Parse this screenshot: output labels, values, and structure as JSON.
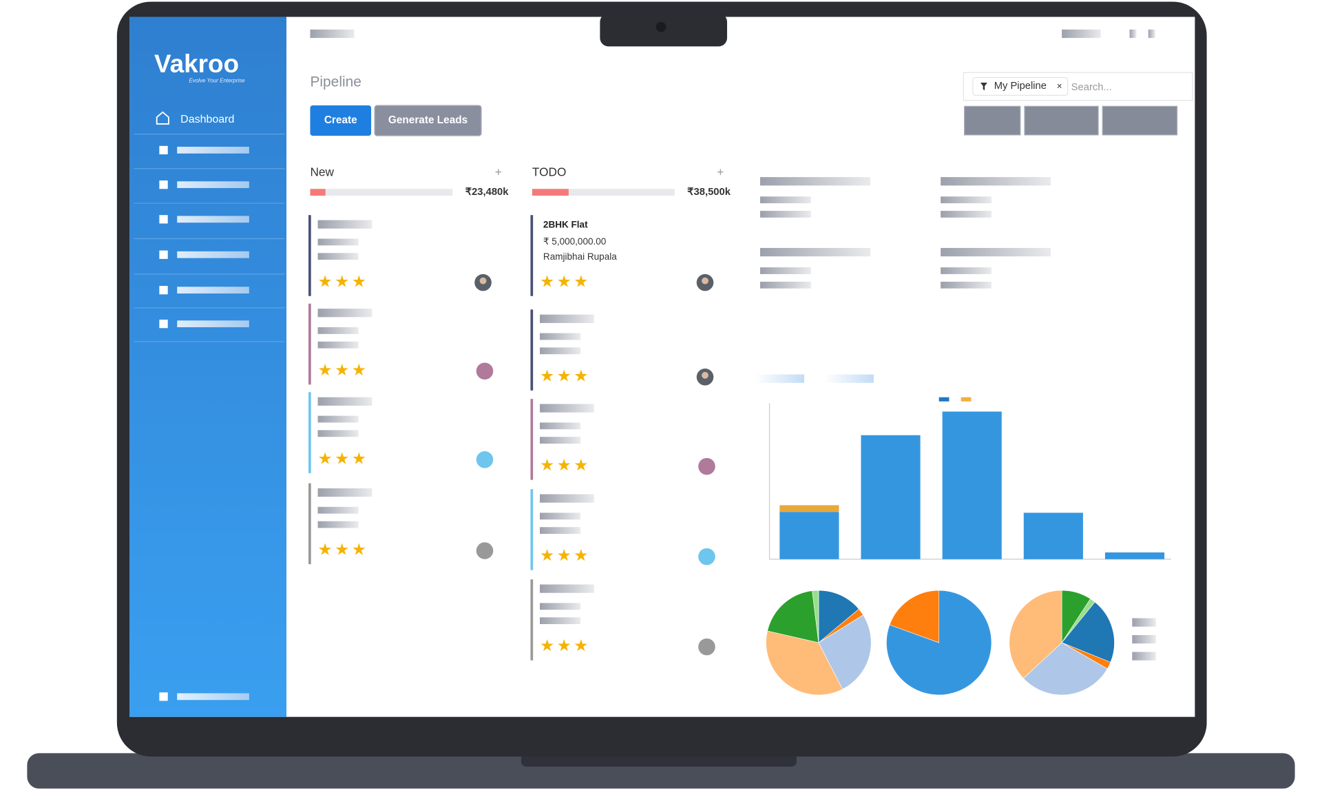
{
  "brand": {
    "name": "Vakroo",
    "tagline": "Evolve Your Enterprise"
  },
  "sidebar": {
    "items": [
      "Dashboard"
    ]
  },
  "header": {
    "title": "Pipeline",
    "buttons": [
      "Create",
      "Generate Leads"
    ],
    "filter": "My Pipeline",
    "search_placeholder": "Search..."
  },
  "columns": [
    {
      "name": "New",
      "total": "₹23,480k"
    },
    {
      "name": "TODO",
      "total": "₹38,500k",
      "card": {
        "title": "2BHK Flat",
        "amount": "₹ 5,000,000.00",
        "contact": "Ramjibhai Rupala"
      }
    }
  ]
}
